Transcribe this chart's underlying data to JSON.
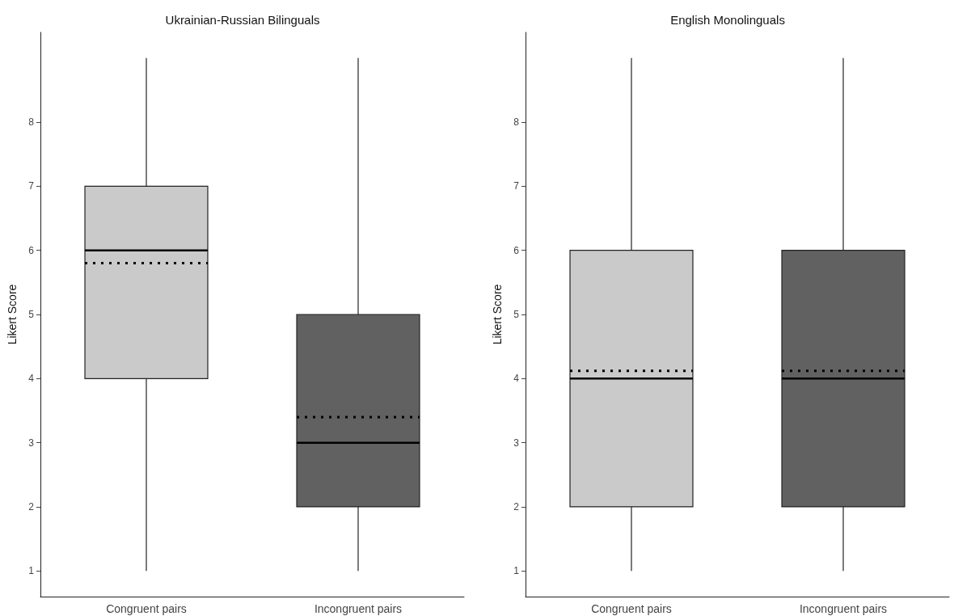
{
  "chart_data": [
    {
      "type": "box",
      "title": "Ukrainian-Russian Bilinguals",
      "ylabel": "Likert Score",
      "categories": [
        "Congruent pairs",
        "Incongruent pairs"
      ],
      "boxes": [
        {
          "low": 1,
          "q1": 4,
          "median": 6,
          "q3": 7,
          "high": 9,
          "mean": 5.8
        },
        {
          "low": 1,
          "q1": 2,
          "median": 3,
          "q3": 5,
          "high": 9,
          "mean": 3.4
        }
      ],
      "colors": [
        "#cacaca",
        "#616161"
      ],
      "ylim": [
        0.6,
        9.4
      ],
      "yticks": [
        1,
        2,
        3,
        4,
        5,
        6,
        7,
        8
      ],
      "grid": false
    },
    {
      "type": "box",
      "title": "English Monolinguals",
      "ylabel": "Likert Score",
      "categories": [
        "Congruent pairs",
        "Incongruent pairs"
      ],
      "boxes": [
        {
          "low": 1,
          "q1": 2,
          "median": 4,
          "q3": 6,
          "high": 9,
          "mean": 4.12
        },
        {
          "low": 1,
          "q1": 2,
          "median": 4,
          "q3": 6,
          "high": 9,
          "mean": 4.12
        }
      ],
      "colors": [
        "#cacaca",
        "#616161"
      ],
      "ylim": [
        0.6,
        9.4
      ],
      "yticks": [
        1,
        2,
        3,
        4,
        5,
        6,
        7,
        8
      ],
      "grid": false
    }
  ]
}
